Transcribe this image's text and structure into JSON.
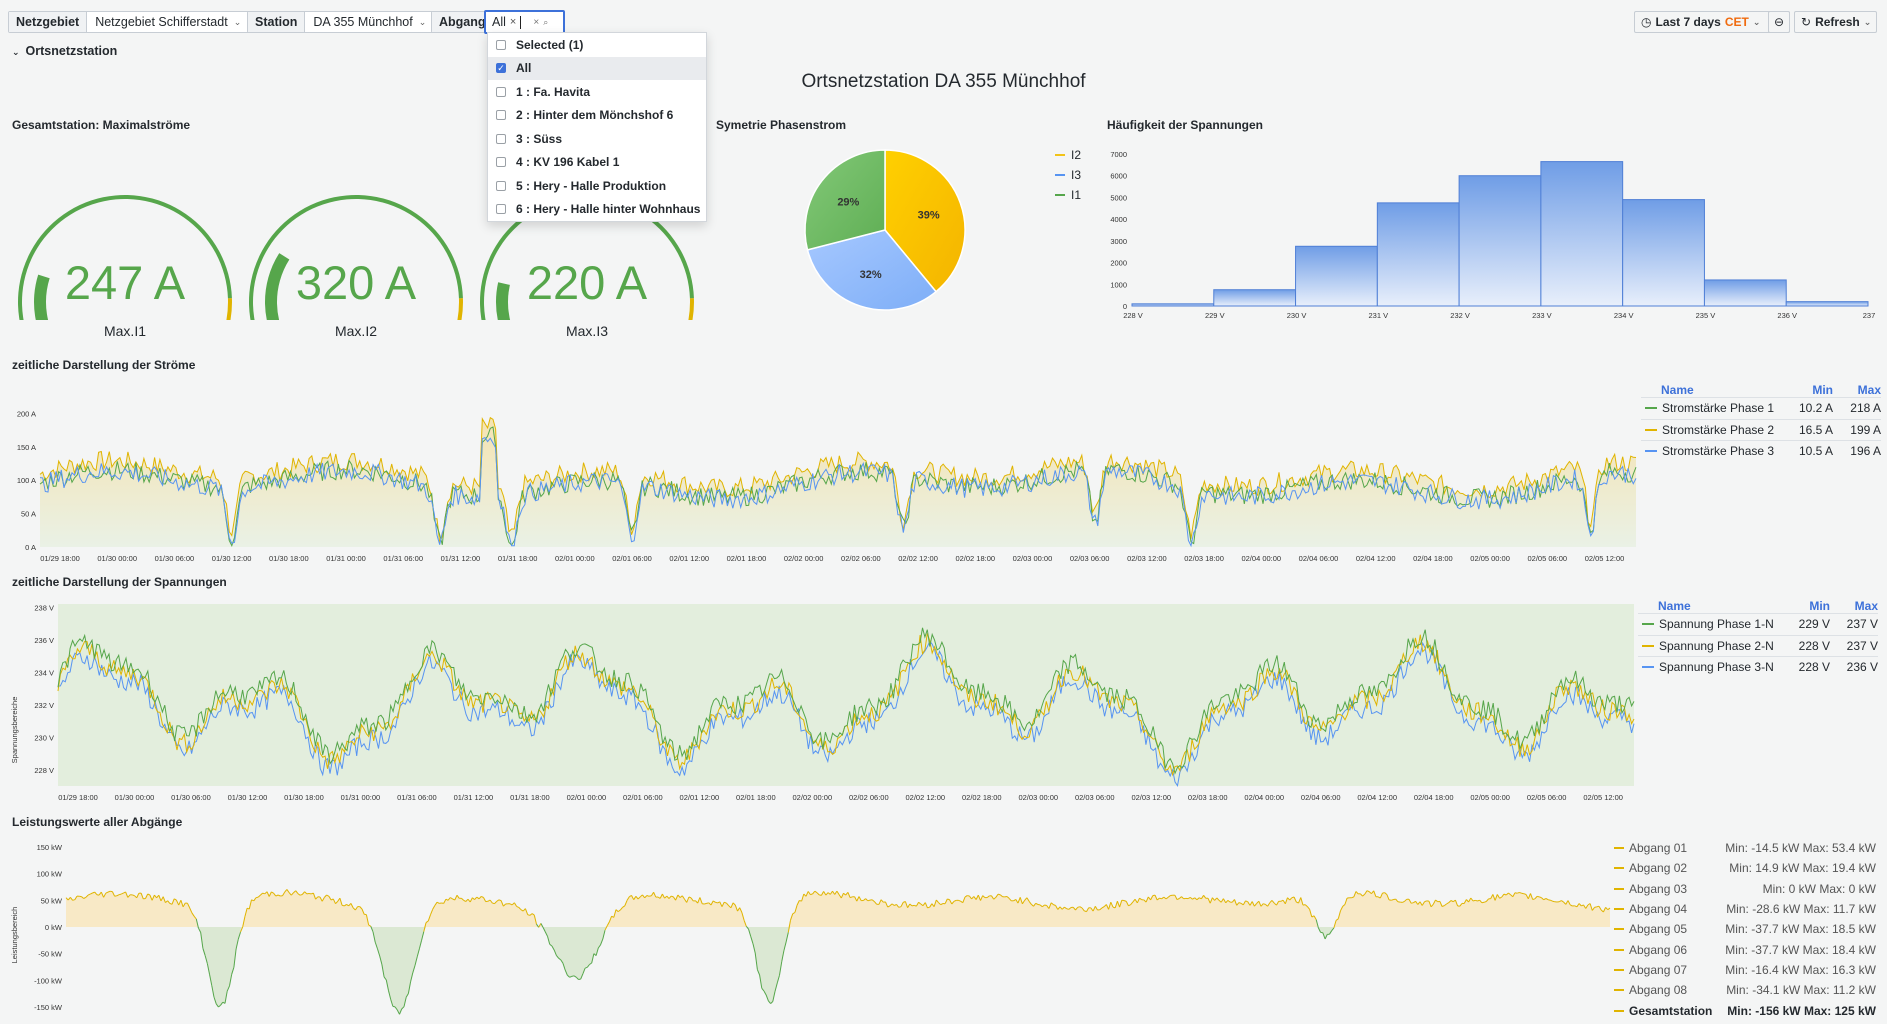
{
  "topbar": {
    "netzgebiet_label": "Netzgebiet",
    "netzgebiet_value": "Netzgebiet Schifferstadt",
    "station_label": "Station",
    "station_value": "DA 355 Münchhof",
    "abgang_label": "Abgang",
    "abgang_chip": "All",
    "time_range": "Last 7 days",
    "timezone": "CET",
    "refresh": "Refresh"
  },
  "abgang_dropdown": {
    "items": [
      {
        "label": "Selected (1)",
        "checked": false
      },
      {
        "label": "All",
        "checked": true
      },
      {
        "label": "1 : Fa. Havita",
        "checked": false
      },
      {
        "label": "2 : Hinter dem Mönchshof 6",
        "checked": false
      },
      {
        "label": "3 : Süss",
        "checked": false
      },
      {
        "label": "4 : KV 196 Kabel 1",
        "checked": false
      },
      {
        "label": "5 : Hery - Halle Produktion",
        "checked": false
      },
      {
        "label": "6 : Hery - Halle hinter Wohnhaus",
        "checked": false
      }
    ]
  },
  "row_section": "Ortsnetzstation",
  "dashboard_title": "Ortsnetzstation DA 355 Münchhof",
  "gauges": {
    "title": "Gesamtstation: Maximalströme",
    "items": [
      {
        "value": "247 A",
        "label": "Max.I1",
        "fraction": 0.21
      },
      {
        "value": "320 A",
        "label": "Max.I2",
        "fraction": 0.27
      },
      {
        "value": "220 A",
        "label": "Max.I3",
        "fraction": 0.19
      }
    ]
  },
  "pie": {
    "title": "Symetrie Phasenstrom",
    "slices": [
      {
        "name": "I2",
        "pct": 39,
        "label": "39%",
        "color": "#f2c318"
      },
      {
        "name": "I3",
        "pct": 32,
        "label": "32%",
        "color": "#8ab8ff"
      },
      {
        "name": "I1",
        "pct": 29,
        "label": "29%",
        "color": "#73bf69"
      }
    ],
    "legend": [
      {
        "name": "I2",
        "color": "#f2c318"
      },
      {
        "name": "I3",
        "color": "#5794f2"
      },
      {
        "name": "I1",
        "color": "#56a64b"
      }
    ]
  },
  "histogram": {
    "title": "Häufigkeit der Spannungen",
    "y_ticks": [
      "7000",
      "6000",
      "5000",
      "4000",
      "3000",
      "2000",
      "1000",
      "0"
    ],
    "x_ticks": [
      "228 V",
      "229 V",
      "230 V",
      "231 V",
      "232 V",
      "233 V",
      "234 V",
      "235 V",
      "236 V",
      "237"
    ]
  },
  "currents": {
    "title": "zeitliche Darstellung der Ströme",
    "y_ticks": [
      "200 A",
      "150 A",
      "100 A",
      "50 A",
      "0 A"
    ],
    "legend_head": {
      "name": "Name",
      "min": "Min",
      "max": "Max"
    },
    "legend": [
      {
        "name": "Stromstärke Phase 1",
        "min": "10.2 A",
        "max": "218 A",
        "color": "#56a64b"
      },
      {
        "name": "Stromstärke Phase 2",
        "min": "16.5 A",
        "max": "199 A",
        "color": "#e0b400"
      },
      {
        "name": "Stromstärke Phase 3",
        "min": "10.5 A",
        "max": "196 A",
        "color": "#5794f2"
      }
    ]
  },
  "voltages": {
    "title": "zeitliche Darstellung der Spannungen",
    "y_axis_label": "Spannungsbereiche",
    "y_ticks": [
      "238 V",
      "236 V",
      "234 V",
      "232 V",
      "230 V",
      "228 V"
    ],
    "legend_head": {
      "name": "Name",
      "min": "Min",
      "max": "Max"
    },
    "legend": [
      {
        "name": "Spannung Phase 1-N",
        "min": "229 V",
        "max": "237 V",
        "color": "#56a64b"
      },
      {
        "name": "Spannung Phase 2-N",
        "min": "228 V",
        "max": "237 V",
        "color": "#e0b400"
      },
      {
        "name": "Spannung Phase 3-N",
        "min": "228 V",
        "max": "236 V",
        "color": "#5794f2"
      }
    ]
  },
  "power": {
    "title": "Leistungswerte aller Abgänge",
    "y_axis_label": "Leistungsbereich",
    "y_ticks": [
      "150 kW",
      "100 kW",
      "50 kW",
      "0 kW",
      "-50 kW",
      "-100 kW",
      "-150 kW"
    ],
    "legend": [
      {
        "name": "Abgang 01",
        "mm": "Min: -14.5 kW  Max: 53.4 kW"
      },
      {
        "name": "Abgang 02",
        "mm": "Min: 14.9 kW  Max: 19.4 kW"
      },
      {
        "name": "Abgang 03",
        "mm": "Min: 0 kW  Max: 0 kW"
      },
      {
        "name": "Abgang 04",
        "mm": "Min: -28.6 kW  Max: 11.7 kW"
      },
      {
        "name": "Abgang 05",
        "mm": "Min: -37.7 kW  Max: 18.5 kW"
      },
      {
        "name": "Abgang 06",
        "mm": "Min: -37.7 kW  Max: 18.4 kW"
      },
      {
        "name": "Abgang 07",
        "mm": "Min: -16.4 kW  Max: 16.3 kW"
      },
      {
        "name": "Abgang 08",
        "mm": "Min: -34.1 kW  Max: 11.2 kW"
      },
      {
        "name": "Gesamtstation",
        "mm": "Min: -156 kW  Max: 125 kW"
      }
    ]
  },
  "time_ticks": [
    "01/29 18:00",
    "01/30 00:00",
    "01/30 06:00",
    "01/30 12:00",
    "01/30 18:00",
    "01/31 00:00",
    "01/31 06:00",
    "01/31 12:00",
    "01/31 18:00",
    "02/01 00:00",
    "02/01 06:00",
    "02/01 12:00",
    "02/01 18:00",
    "02/02 00:00",
    "02/02 06:00",
    "02/02 12:00",
    "02/02 18:00",
    "02/03 00:00",
    "02/03 06:00",
    "02/03 12:00",
    "02/03 18:00",
    "02/04 00:00",
    "02/04 06:00",
    "02/04 12:00",
    "02/04 18:00",
    "02/05 00:00",
    "02/05 06:00",
    "02/05 12:00"
  ],
  "chart_data": [
    {
      "type": "bar",
      "title": "Häufigkeit der Spannungen",
      "categories": [
        "228 V",
        "229 V",
        "230 V",
        "231 V",
        "232 V",
        "233 V",
        "234 V",
        "235 V",
        "236 V"
      ],
      "values": [
        100,
        750,
        2750,
        4750,
        6000,
        6650,
        4900,
        1200,
        200
      ],
      "ylim": [
        0,
        7000
      ]
    },
    {
      "type": "pie",
      "title": "Symetrie Phasenstrom",
      "categories": [
        "I2",
        "I3",
        "I1"
      ],
      "values": [
        39,
        32,
        29
      ]
    }
  ]
}
